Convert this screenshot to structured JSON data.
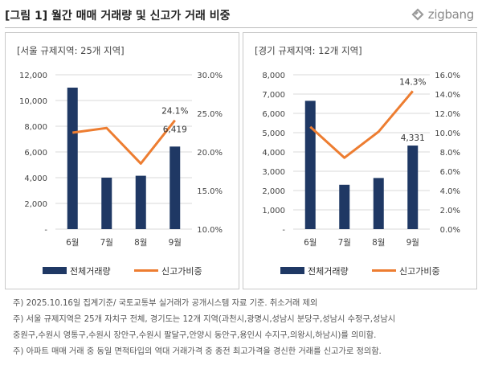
{
  "header": {
    "title": "[그림 1] 월간 매매 거래량 및 신고가 거래 비중",
    "logo_text": "zigbang"
  },
  "legend": {
    "bar_label": "전체거래량",
    "line_label": "신고가비중"
  },
  "colors": {
    "bar": "#1f3864",
    "line": "#ed7d31",
    "grid": "#d9d9d9",
    "axis_text": "#444444"
  },
  "chart_data": [
    {
      "type": "bar",
      "title": "[서울 규제지역: 25개 지역]",
      "categories": [
        "6월",
        "7월",
        "8월",
        "9월"
      ],
      "series": [
        {
          "name": "전체거래량",
          "type": "bar",
          "axis": "left",
          "values": [
            11000,
            4000,
            4150,
            6419
          ]
        },
        {
          "name": "신고가비중",
          "type": "line",
          "axis": "right",
          "values": [
            22.5,
            23.1,
            18.5,
            24.1
          ]
        }
      ],
      "y_left": {
        "min": 0,
        "max": 12000,
        "ticks": [
          "-",
          "2,000",
          "4,000",
          "6,000",
          "8,000",
          "10,000",
          "12,000"
        ]
      },
      "y_right": {
        "min": 10,
        "max": 30,
        "ticks": [
          "10.0%",
          "15.0%",
          "20.0%",
          "25.0%",
          "30.0%"
        ]
      },
      "data_labels": [
        {
          "series": "전체거래량",
          "index": 3,
          "text": "6,419"
        },
        {
          "series": "신고가비중",
          "index": 3,
          "text": "24.1%"
        }
      ],
      "grid": true,
      "legend_position": "bottom"
    },
    {
      "type": "bar",
      "title": "[경기 규제지역: 12개 지역]",
      "categories": [
        "6월",
        "7월",
        "8월",
        "9월"
      ],
      "series": [
        {
          "name": "전체거래량",
          "type": "bar",
          "axis": "left",
          "values": [
            6650,
            2300,
            2650,
            4331
          ]
        },
        {
          "name": "신고가비중",
          "type": "line",
          "axis": "right",
          "values": [
            10.6,
            7.4,
            10.1,
            14.3
          ]
        }
      ],
      "y_left": {
        "min": 0,
        "max": 8000,
        "ticks": [
          "-",
          "1,000",
          "2,000",
          "3,000",
          "4,000",
          "5,000",
          "6,000",
          "7,000",
          "8,000"
        ]
      },
      "y_right": {
        "min": 0,
        "max": 16,
        "ticks": [
          "0.0%",
          "2.0%",
          "4.0%",
          "6.0%",
          "8.0%",
          "10.0%",
          "12.0%",
          "14.0%",
          "16.0%"
        ]
      },
      "data_labels": [
        {
          "series": "전체거래량",
          "index": 3,
          "text": "4,331"
        },
        {
          "series": "신고가비중",
          "index": 3,
          "text": "14.3%"
        }
      ],
      "grid": true,
      "legend_position": "bottom"
    }
  ],
  "footnotes": [
    "주) 2025.10.16일 집계기준/ 국토교통부 실거래가 공개시스템 자료 기준. 취소거래 제외",
    "주) 서울 규제지역은 25개 자치구 전체, 경기도는 12개 지역(과천시,광명시,성남시 분당구,성남시 수정구,성남시",
    "중원구,수원시 영통구,수원시 장안구,수원시 팔달구,안양시 동안구,용인시 수지구,의왕시,하남시)를 의미함.",
    "주) 아파트 매매 거래 중 동일 면적타입의 역대 거래가격 중 종전 최고가격을 경신한 거래를 신고가로 정의함."
  ]
}
